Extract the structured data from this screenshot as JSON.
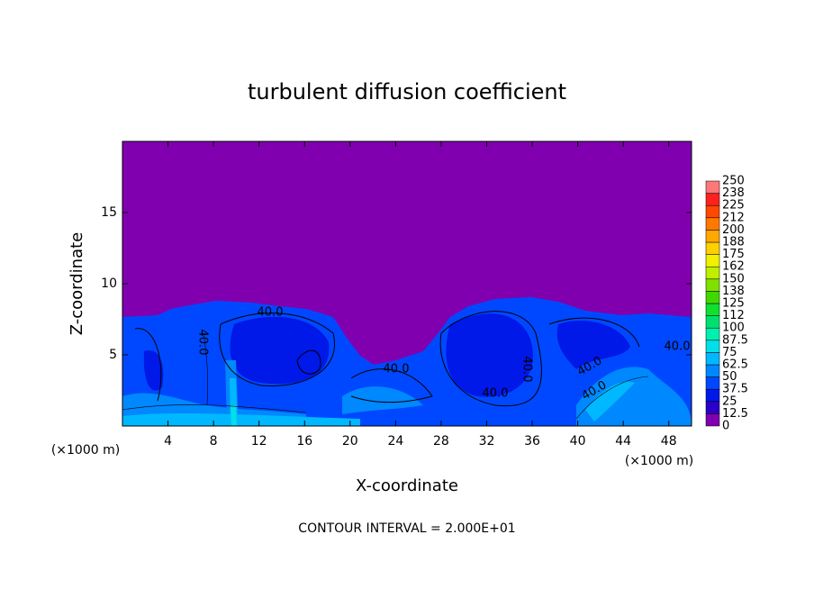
{
  "chart_data": {
    "type": "contour",
    "title": "turbulent diffusion coefficient",
    "x_label": "X-coordinate",
    "y_label": "Z-coordinate",
    "x_unit": "(×1000 m)",
    "footer": "CONTOUR INTERVAL = 2.000E+01",
    "contour_label": "40.0",
    "xlim": [
      0,
      50
    ],
    "xticks": [
      4,
      8,
      12,
      16,
      20,
      24,
      28,
      32,
      36,
      40,
      44,
      48
    ],
    "ylim": [
      0,
      20
    ],
    "yticks": [
      5,
      10,
      15
    ],
    "levels": [
      0,
      12.5,
      25,
      37.5,
      50,
      62.5,
      75,
      87.5,
      100,
      112,
      125,
      138,
      150,
      162,
      175,
      188,
      200,
      212,
      225,
      238,
      250
    ],
    "colors": [
      "#8000b0",
      "#2a00c8",
      "#0018e8",
      "#0048ff",
      "#0088ff",
      "#00b8ff",
      "#00e0e8",
      "#00f0b0",
      "#00e070",
      "#10e030",
      "#40d800",
      "#80e000",
      "#c0ee00",
      "#f0f000",
      "#ffd000",
      "#ffa800",
      "#ff7800",
      "#ff4800",
      "#ff2020",
      "#ff7878"
    ]
  }
}
